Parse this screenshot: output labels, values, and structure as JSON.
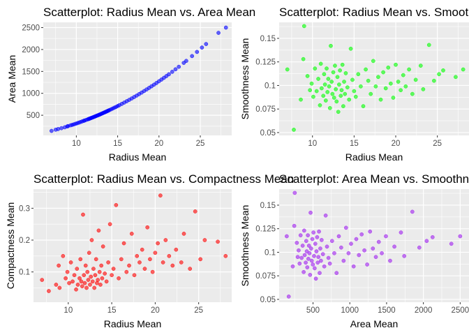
{
  "chart_data": [
    {
      "type": "scatter",
      "title": "Scatterplot: Radius Mean vs. Area Mean",
      "xlabel": "Radius Mean",
      "ylabel": "Area Mean",
      "xlim": [
        6.0,
        28.8
      ],
      "ylim": [
        40,
        2620
      ],
      "x_ticks": [
        10,
        15,
        20,
        25
      ],
      "y_ticks": [
        500,
        1000,
        1500,
        2000,
        2500
      ],
      "color": "#0000ff",
      "grid": true,
      "points": [
        [
          7.0,
          143
        ],
        [
          7.5,
          170
        ],
        [
          7.8,
          185
        ],
        [
          8.2,
          205
        ],
        [
          8.6,
          225
        ],
        [
          8.9,
          245
        ],
        [
          9.0,
          252
        ],
        [
          9.3,
          270
        ],
        [
          9.5,
          280
        ],
        [
          9.7,
          292
        ],
        [
          9.9,
          305
        ],
        [
          10.1,
          318
        ],
        [
          10.3,
          331
        ],
        [
          10.5,
          345
        ],
        [
          10.7,
          359
        ],
        [
          10.9,
          373
        ],
        [
          11.0,
          380
        ],
        [
          11.2,
          394
        ],
        [
          11.4,
          408
        ],
        [
          11.5,
          415
        ],
        [
          11.6,
          422
        ],
        [
          11.7,
          430
        ],
        [
          11.8,
          437
        ],
        [
          11.9,
          445
        ],
        [
          12.0,
          452
        ],
        [
          12.1,
          460
        ],
        [
          12.2,
          467
        ],
        [
          12.3,
          475
        ],
        [
          12.4,
          483
        ],
        [
          12.5,
          491
        ],
        [
          12.6,
          498
        ],
        [
          12.7,
          506
        ],
        [
          12.8,
          514
        ],
        [
          12.9,
          522
        ],
        [
          13.0,
          531
        ],
        [
          13.1,
          539
        ],
        [
          13.2,
          547
        ],
        [
          13.3,
          556
        ],
        [
          13.4,
          564
        ],
        [
          13.5,
          573
        ],
        [
          13.6,
          581
        ],
        [
          13.7,
          590
        ],
        [
          13.8,
          599
        ],
        [
          13.9,
          608
        ],
        [
          14.0,
          617
        ],
        [
          14.2,
          635
        ],
        [
          14.4,
          653
        ],
        [
          14.6,
          672
        ],
        [
          14.8,
          690
        ],
        [
          15.0,
          710
        ],
        [
          15.2,
          729
        ],
        [
          15.5,
          759
        ],
        [
          15.8,
          789
        ],
        [
          16.1,
          820
        ],
        [
          16.4,
          851
        ],
        [
          16.7,
          883
        ],
        [
          17.0,
          916
        ],
        [
          17.3,
          949
        ],
        [
          17.6,
          983
        ],
        [
          17.9,
          1017
        ],
        [
          18.2,
          1052
        ],
        [
          18.5,
          1088
        ],
        [
          18.8,
          1124
        ],
        [
          19.1,
          1161
        ],
        [
          19.4,
          1198
        ],
        [
          19.7,
          1236
        ],
        [
          20.0,
          1275
        ],
        [
          20.3,
          1314
        ],
        [
          20.6,
          1354
        ],
        [
          20.9,
          1394
        ],
        [
          21.2,
          1435
        ],
        [
          21.6,
          1491
        ],
        [
          22.0,
          1548
        ],
        [
          22.4,
          1606
        ],
        [
          23.0,
          1695
        ],
        [
          23.3,
          1740
        ],
        [
          24.0,
          1850
        ],
        [
          24.6,
          1945
        ],
        [
          25.2,
          2045
        ],
        [
          25.7,
          2125
        ],
        [
          27.2,
          2380
        ],
        [
          28.1,
          2500
        ]
      ]
    },
    {
      "type": "scatter",
      "title": "Scatterplot: Radius Mean vs. Smoothness Mean",
      "xlabel": "Radius Mean",
      "ylabel": "Smoothness Mean",
      "xlim": [
        6.0,
        28.8
      ],
      "ylim": [
        0.047,
        0.167
      ],
      "x_ticks": [
        10,
        15,
        20,
        25
      ],
      "y_ticks": [
        0.05,
        0.075,
        0.1,
        0.125,
        0.15
      ],
      "color": "#00ff00",
      "grid": true,
      "points": [
        [
          6.98,
          0.117
        ],
        [
          7.76,
          0.053
        ],
        [
          8.6,
          0.085
        ],
        [
          8.9,
          0.128
        ],
        [
          9.0,
          0.163
        ],
        [
          9.4,
          0.11
        ],
        [
          9.7,
          0.095
        ],
        [
          9.9,
          0.102
        ],
        [
          10.1,
          0.088
        ],
        [
          10.3,
          0.118
        ],
        [
          10.5,
          0.094
        ],
        [
          10.7,
          0.107
        ],
        [
          10.9,
          0.079
        ],
        [
          11.0,
          0.123
        ],
        [
          11.1,
          0.097
        ],
        [
          11.3,
          0.089
        ],
        [
          11.4,
          0.112
        ],
        [
          11.5,
          0.101
        ],
        [
          11.6,
          0.084
        ],
        [
          11.7,
          0.118
        ],
        [
          11.8,
          0.093
        ],
        [
          11.9,
          0.107
        ],
        [
          12.0,
          0.099
        ],
        [
          12.1,
          0.076
        ],
        [
          12.2,
          0.142
        ],
        [
          12.3,
          0.104
        ],
        [
          12.4,
          0.091
        ],
        [
          12.5,
          0.114
        ],
        [
          12.6,
          0.087
        ],
        [
          12.7,
          0.121
        ],
        [
          12.8,
          0.096
        ],
        [
          12.9,
          0.083
        ],
        [
          13.0,
          0.109
        ],
        [
          13.1,
          0.072
        ],
        [
          13.2,
          0.101
        ],
        [
          13.3,
          0.116
        ],
        [
          13.4,
          0.089
        ],
        [
          13.5,
          0.095
        ],
        [
          13.6,
          0.122
        ],
        [
          13.7,
          0.078
        ],
        [
          13.8,
          0.104
        ],
        [
          13.9,
          0.091
        ],
        [
          14.0,
          0.113
        ],
        [
          14.2,
          0.098
        ],
        [
          14.4,
          0.085
        ],
        [
          14.6,
          0.139
        ],
        [
          14.8,
          0.106
        ],
        [
          15.0,
          0.094
        ],
        [
          15.2,
          0.088
        ],
        [
          15.5,
          0.112
        ],
        [
          15.8,
          0.099
        ],
        [
          16.1,
          0.078
        ],
        [
          16.4,
          0.117
        ],
        [
          16.7,
          0.105
        ],
        [
          17.0,
          0.091
        ],
        [
          17.3,
          0.126
        ],
        [
          17.6,
          0.099
        ],
        [
          17.9,
          0.109
        ],
        [
          18.2,
          0.085
        ],
        [
          18.5,
          0.114
        ],
        [
          18.8,
          0.097
        ],
        [
          19.1,
          0.119
        ],
        [
          19.4,
          0.102
        ],
        [
          19.7,
          0.087
        ],
        [
          20.0,
          0.122
        ],
        [
          20.3,
          0.104
        ],
        [
          20.6,
          0.095
        ],
        [
          20.9,
          0.111
        ],
        [
          21.2,
          0.099
        ],
        [
          21.6,
          0.117
        ],
        [
          22.0,
          0.091
        ],
        [
          22.4,
          0.106
        ],
        [
          23.0,
          0.121
        ],
        [
          23.3,
          0.096
        ],
        [
          24.0,
          0.143
        ],
        [
          24.6,
          0.105
        ],
        [
          25.2,
          0.112
        ],
        [
          25.7,
          0.116
        ],
        [
          27.2,
          0.109
        ],
        [
          28.1,
          0.117
        ]
      ]
    },
    {
      "type": "scatter",
      "title": "Scatterplot: Radius Mean vs. Compactness Mean",
      "xlabel": "Radius Mean",
      "ylabel": "Compactness Mean",
      "xlim": [
        6.0,
        28.8
      ],
      "ylim": [
        0.005,
        0.36
      ],
      "x_ticks": [
        10,
        15,
        20,
        25
      ],
      "y_ticks": [
        0.1,
        0.2,
        0.3
      ],
      "color": "#ff0000",
      "grid": true,
      "points": [
        [
          6.98,
          0.075
        ],
        [
          7.76,
          0.04
        ],
        [
          8.6,
          0.06
        ],
        [
          8.9,
          0.12
        ],
        [
          9.0,
          0.05
        ],
        [
          9.4,
          0.15
        ],
        [
          9.7,
          0.08
        ],
        [
          9.9,
          0.1
        ],
        [
          10.1,
          0.065
        ],
        [
          10.3,
          0.13
        ],
        [
          10.5,
          0.07
        ],
        [
          10.7,
          0.09
        ],
        [
          10.9,
          0.045
        ],
        [
          11.0,
          0.11
        ],
        [
          11.1,
          0.06
        ],
        [
          11.3,
          0.08
        ],
        [
          11.4,
          0.14
        ],
        [
          11.5,
          0.07
        ],
        [
          11.6,
          0.055
        ],
        [
          11.7,
          0.28
        ],
        [
          11.8,
          0.09
        ],
        [
          11.9,
          0.065
        ],
        [
          12.0,
          0.12
        ],
        [
          12.1,
          0.05
        ],
        [
          12.2,
          0.1
        ],
        [
          12.3,
          0.075
        ],
        [
          12.4,
          0.16
        ],
        [
          12.5,
          0.06
        ],
        [
          12.6,
          0.085
        ],
        [
          12.7,
          0.2
        ],
        [
          12.8,
          0.07
        ],
        [
          12.9,
          0.11
        ],
        [
          13.0,
          0.05
        ],
        [
          13.1,
          0.09
        ],
        [
          13.2,
          0.14
        ],
        [
          13.3,
          0.065
        ],
        [
          13.4,
          0.075
        ],
        [
          13.5,
          0.23
        ],
        [
          13.6,
          0.1
        ],
        [
          13.7,
          0.06
        ],
        [
          13.8,
          0.12
        ],
        [
          13.9,
          0.08
        ],
        [
          14.0,
          0.18
        ],
        [
          14.2,
          0.095
        ],
        [
          14.4,
          0.07
        ],
        [
          14.6,
          0.13
        ],
        [
          14.8,
          0.25
        ],
        [
          15.0,
          0.09
        ],
        [
          15.2,
          0.11
        ],
        [
          15.5,
          0.31
        ],
        [
          15.8,
          0.08
        ],
        [
          16.1,
          0.14
        ],
        [
          16.4,
          0.19
        ],
        [
          16.7,
          0.1
        ],
        [
          17.0,
          0.12
        ],
        [
          17.3,
          0.22
        ],
        [
          17.6,
          0.09
        ],
        [
          17.9,
          0.15
        ],
        [
          18.2,
          0.13
        ],
        [
          18.5,
          0.17
        ],
        [
          18.8,
          0.11
        ],
        [
          19.1,
          0.24
        ],
        [
          19.4,
          0.14
        ],
        [
          19.7,
          0.1
        ],
        [
          20.0,
          0.16
        ],
        [
          20.3,
          0.19
        ],
        [
          20.6,
          0.34
        ],
        [
          20.9,
          0.13
        ],
        [
          21.2,
          0.2
        ],
        [
          21.6,
          0.15
        ],
        [
          22.0,
          0.12
        ],
        [
          22.4,
          0.17
        ],
        [
          23.0,
          0.13
        ],
        [
          23.3,
          0.22
        ],
        [
          24.0,
          0.11
        ],
        [
          24.6,
          0.29
        ],
        [
          25.2,
          0.14
        ],
        [
          25.7,
          0.2
        ],
        [
          27.2,
          0.195
        ],
        [
          28.1,
          0.15
        ]
      ]
    },
    {
      "type": "scatter",
      "title": "Scatterplot: Area Mean vs. Smoothness Mean",
      "xlabel": "Area Mean",
      "ylabel": "Smoothness Mean",
      "xlim": [
        40,
        2620
      ],
      "ylim": [
        0.047,
        0.167
      ],
      "x_ticks": [
        500,
        1000,
        1500,
        2000,
        2500
      ],
      "y_ticks": [
        0.05,
        0.075,
        0.1,
        0.125,
        0.15
      ],
      "color": "#a020f0",
      "grid": true,
      "points": [
        [
          143,
          0.117
        ],
        [
          170,
          0.053
        ],
        [
          225,
          0.085
        ],
        [
          245,
          0.128
        ],
        [
          252,
          0.163
        ],
        [
          280,
          0.11
        ],
        [
          292,
          0.095
        ],
        [
          305,
          0.102
        ],
        [
          318,
          0.088
        ],
        [
          331,
          0.118
        ],
        [
          345,
          0.094
        ],
        [
          359,
          0.107
        ],
        [
          373,
          0.079
        ],
        [
          380,
          0.123
        ],
        [
          387,
          0.097
        ],
        [
          401,
          0.089
        ],
        [
          408,
          0.112
        ],
        [
          415,
          0.101
        ],
        [
          422,
          0.084
        ],
        [
          430,
          0.118
        ],
        [
          437,
          0.093
        ],
        [
          445,
          0.107
        ],
        [
          452,
          0.099
        ],
        [
          460,
          0.076
        ],
        [
          467,
          0.142
        ],
        [
          475,
          0.104
        ],
        [
          483,
          0.091
        ],
        [
          491,
          0.114
        ],
        [
          498,
          0.087
        ],
        [
          506,
          0.121
        ],
        [
          514,
          0.096
        ],
        [
          522,
          0.083
        ],
        [
          531,
          0.109
        ],
        [
          539,
          0.072
        ],
        [
          547,
          0.101
        ],
        [
          556,
          0.116
        ],
        [
          564,
          0.089
        ],
        [
          573,
          0.095
        ],
        [
          581,
          0.122
        ],
        [
          590,
          0.078
        ],
        [
          599,
          0.104
        ],
        [
          608,
          0.091
        ],
        [
          617,
          0.113
        ],
        [
          635,
          0.098
        ],
        [
          653,
          0.085
        ],
        [
          672,
          0.139
        ],
        [
          690,
          0.106
        ],
        [
          710,
          0.094
        ],
        [
          729,
          0.088
        ],
        [
          759,
          0.112
        ],
        [
          789,
          0.099
        ],
        [
          820,
          0.078
        ],
        [
          851,
          0.117
        ],
        [
          883,
          0.105
        ],
        [
          916,
          0.091
        ],
        [
          949,
          0.126
        ],
        [
          983,
          0.099
        ],
        [
          1017,
          0.109
        ],
        [
          1052,
          0.085
        ],
        [
          1088,
          0.114
        ],
        [
          1124,
          0.097
        ],
        [
          1161,
          0.119
        ],
        [
          1198,
          0.102
        ],
        [
          1236,
          0.087
        ],
        [
          1275,
          0.122
        ],
        [
          1314,
          0.104
        ],
        [
          1354,
          0.095
        ],
        [
          1394,
          0.111
        ],
        [
          1435,
          0.099
        ],
        [
          1491,
          0.117
        ],
        [
          1548,
          0.091
        ],
        [
          1606,
          0.106
        ],
        [
          1695,
          0.121
        ],
        [
          1740,
          0.096
        ],
        [
          1850,
          0.143
        ],
        [
          1945,
          0.105
        ],
        [
          2045,
          0.112
        ],
        [
          2125,
          0.116
        ],
        [
          2380,
          0.109
        ],
        [
          2500,
          0.117
        ]
      ]
    }
  ]
}
